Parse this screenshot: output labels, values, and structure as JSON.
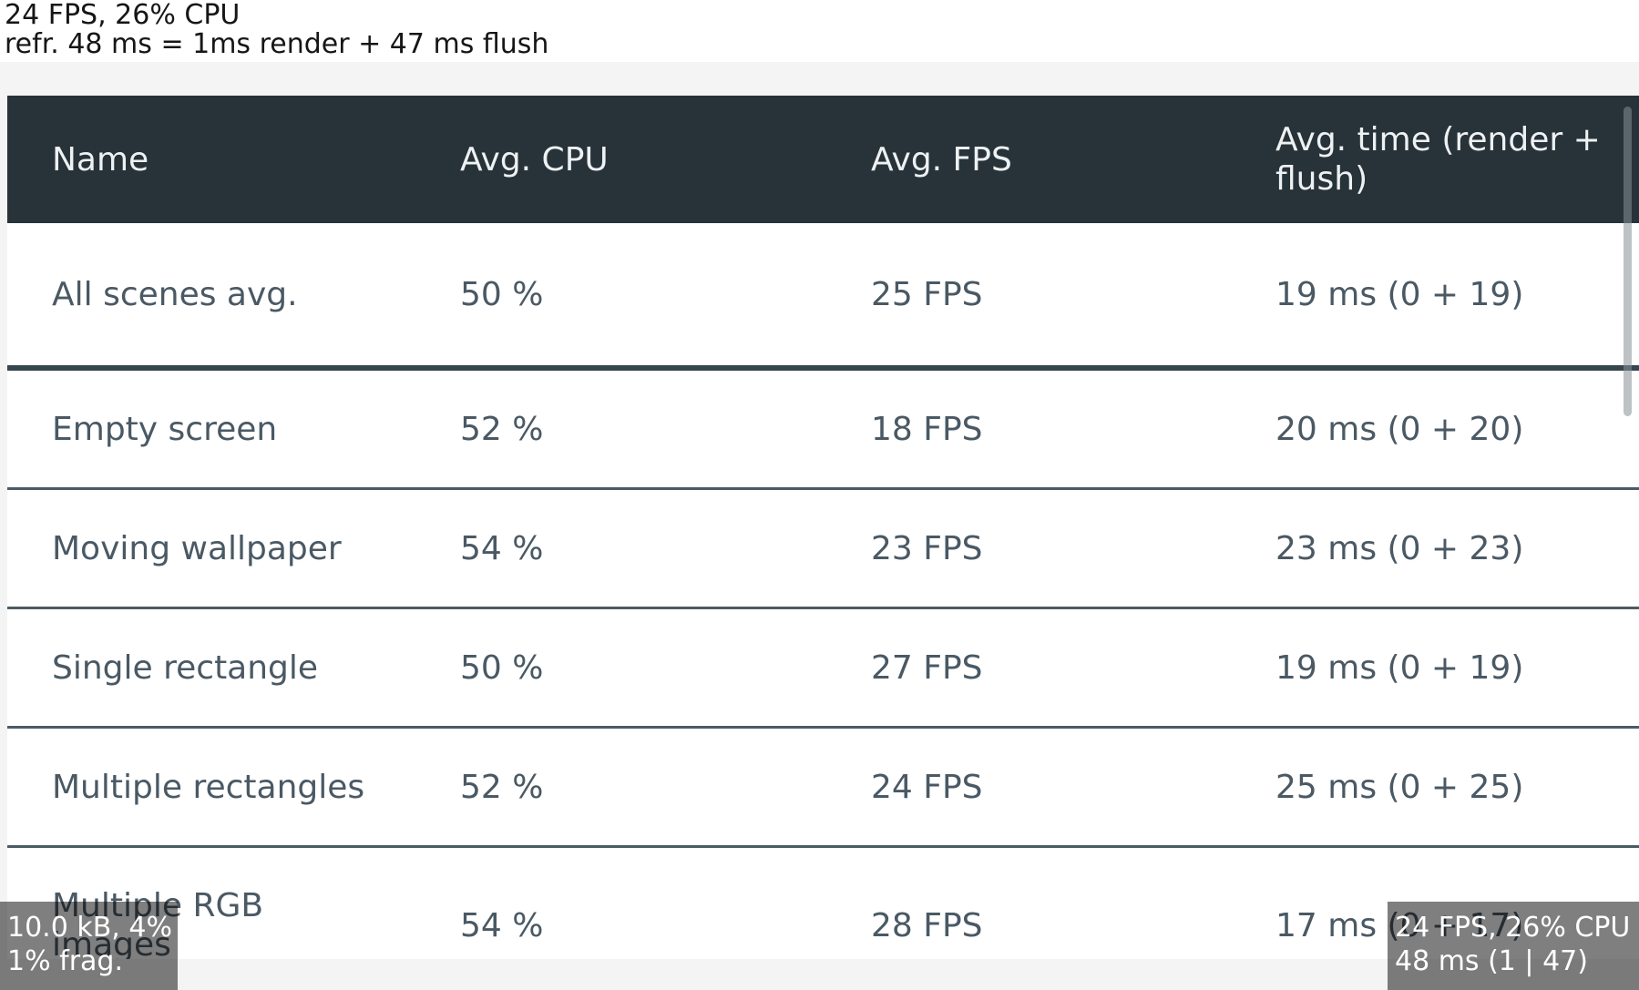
{
  "monitors": {
    "top": {
      "line1": "24 FPS, 26% CPU",
      "line2": "refr. 48 ms = 1ms render + 47 ms flush"
    },
    "memory": {
      "line1": "10.0 kB, 4%",
      "line2": "1% frag."
    },
    "frame": {
      "line1": "24 FPS, 26% CPU",
      "line2": "48 ms (1 | 47)"
    }
  },
  "table": {
    "columns": [
      "Name",
      "Avg. CPU",
      "Avg. FPS",
      "Avg. time (render + flush)"
    ],
    "rows": [
      {
        "name": "All scenes avg.",
        "cpu": "50 %",
        "fps": "25 FPS",
        "time": "19 ms (0 + 19)",
        "emphasis": true
      },
      {
        "name": "Empty screen",
        "cpu": "52 %",
        "fps": "18 FPS",
        "time": "20 ms (0 + 20)"
      },
      {
        "name": "Moving wallpaper",
        "cpu": "54 %",
        "fps": "23 FPS",
        "time": "23 ms (0 + 23)"
      },
      {
        "name": "Single rectangle",
        "cpu": "50 %",
        "fps": "27 FPS",
        "time": "19 ms (0 + 19)"
      },
      {
        "name": "Multiple rectangles",
        "cpu": "52 %",
        "fps": "24 FPS",
        "time": "25 ms (0 + 25)"
      },
      {
        "name": "Multiple RGB\nimages",
        "cpu": "54 %",
        "fps": "28 FPS",
        "time": "17 ms (0 + 17)",
        "last": true
      }
    ]
  },
  "colors": {
    "header_bg": "#273239",
    "row_text": "#4a5964",
    "thick_divider": "#36454e",
    "thin_divider": "#4c5b63",
    "page_bg": "#f4f4f4",
    "overlay_bg": "rgba(0,0,0,0.5)"
  }
}
